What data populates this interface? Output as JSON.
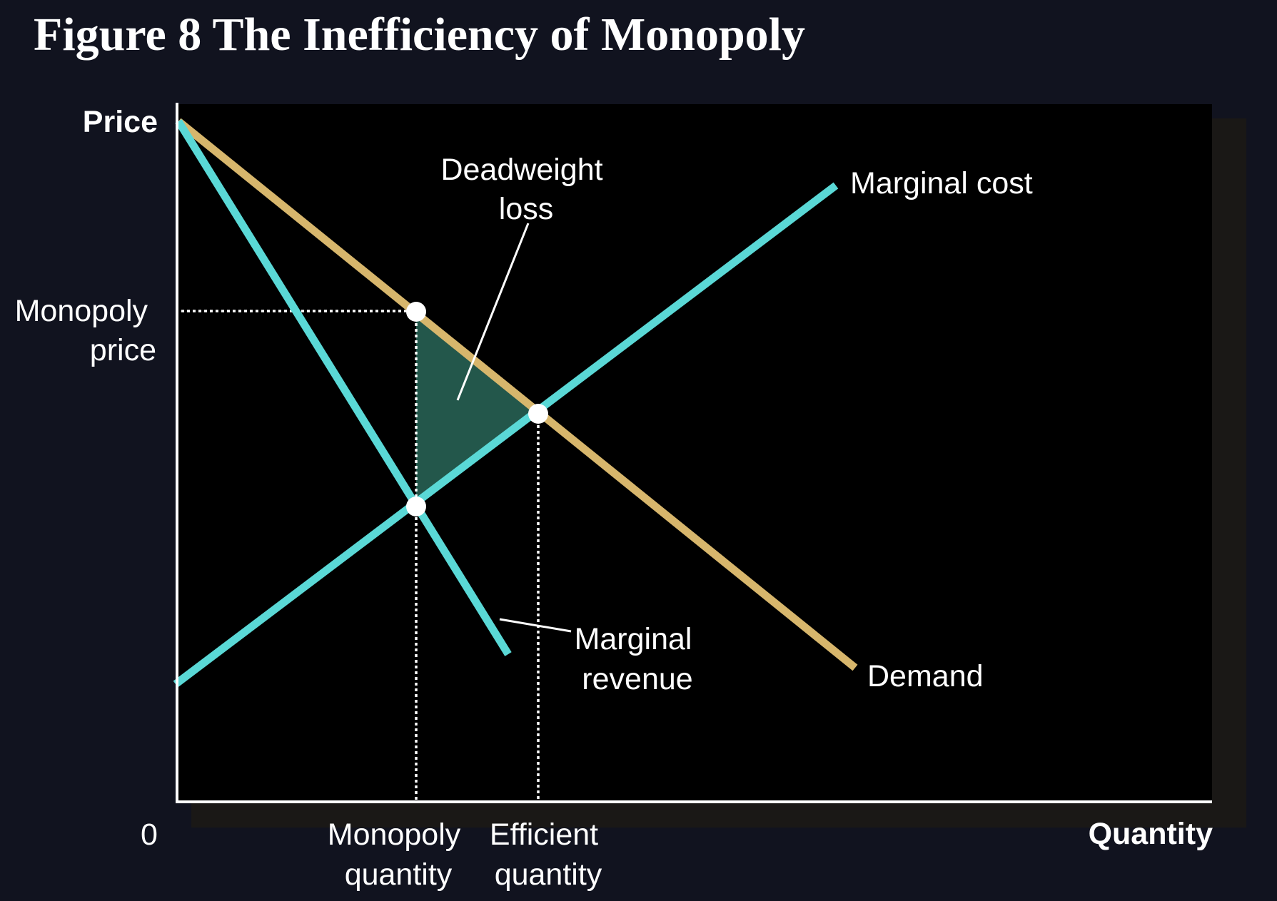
{
  "title": "Figure 8 The Inefficiency of Monopoly",
  "axes": {
    "y_label": "Price",
    "x_label": "Quantity",
    "origin_label": "0",
    "monopoly_price": [
      "Monopoly",
      "price"
    ],
    "monopoly_quantity": [
      "Monopoly",
      "quantity"
    ],
    "efficient_quantity": [
      "Efficient",
      "quantity"
    ]
  },
  "curves": {
    "marginal_cost": "Marginal cost",
    "demand": "Demand",
    "marginal_revenue": [
      "Marginal",
      "revenue"
    ]
  },
  "annotation": {
    "deadweight_loss": [
      "Deadweight",
      "loss"
    ]
  },
  "colors": {
    "demand": "#d7b66c",
    "marginal_curves": "#5ad8d6",
    "deadweight_fill": "#23574b",
    "plot_background": "#000000",
    "page_background": "#11131f",
    "shadow": "#1a1816"
  }
}
